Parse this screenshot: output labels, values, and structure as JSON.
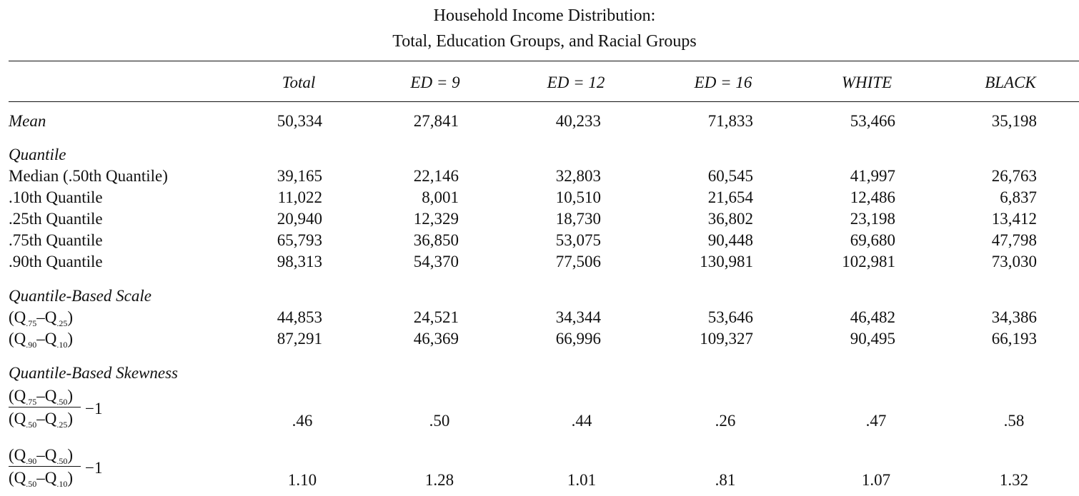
{
  "title_line1": "Household Income Distribution:",
  "title_line2": "Total, Education Groups, and Racial Groups",
  "columns": [
    "Total",
    "ED = 9",
    "ED = 12",
    "ED = 16",
    "WHITE",
    "BLACK"
  ],
  "mean": {
    "label": "Mean",
    "values": [
      "50,334",
      "27,841",
      "40,233",
      "71,833",
      "53,466",
      "35,198"
    ]
  },
  "quantile": {
    "heading": "Quantile",
    "rows": [
      {
        "label": "Median (.50th Quantile)",
        "values": [
          "39,165",
          "22,146",
          "32,803",
          "60,545",
          "41,997",
          "26,763"
        ]
      },
      {
        "label": ".10th Quantile",
        "values": [
          "11,022",
          "8,001",
          "10,510",
          "21,654",
          "12,486",
          "6,837"
        ]
      },
      {
        "label": ".25th Quantile",
        "values": [
          "20,940",
          "12,329",
          "18,730",
          "36,802",
          "23,198",
          "13,412"
        ]
      },
      {
        "label": ".75th Quantile",
        "values": [
          "65,793",
          "36,850",
          "53,075",
          "90,448",
          "69,680",
          "47,798"
        ]
      },
      {
        "label": ".90th Quantile",
        "values": [
          "98,313",
          "54,370",
          "77,506",
          "130,981",
          "102,981",
          "73,030"
        ]
      }
    ]
  },
  "scale": {
    "heading": "Quantile-Based Scale",
    "rows": [
      {
        "sub_a": ".75",
        "sub_b": ".25",
        "values": [
          "44,853",
          "24,521",
          "34,344",
          "53,646",
          "46,482",
          "34,386"
        ]
      },
      {
        "sub_a": ".90",
        "sub_b": ".10",
        "values": [
          "87,291",
          "46,369",
          "66,996",
          "109,327",
          "90,495",
          "66,193"
        ]
      }
    ]
  },
  "skewness": {
    "heading": "Quantile-Based Skewness",
    "minus_one": "−1",
    "rows": [
      {
        "num_a": ".75",
        "num_b": ".50",
        "den_a": ".50",
        "den_b": ".25",
        "values": [
          ".46",
          ".50",
          ".44",
          ".26",
          ".47",
          ".58"
        ]
      },
      {
        "num_a": ".90",
        "num_b": ".50",
        "den_a": ".50",
        "den_b": ".10",
        "values": [
          "1.10",
          "1.28",
          "1.01",
          ".81",
          "1.07",
          "1.32"
        ]
      }
    ]
  }
}
